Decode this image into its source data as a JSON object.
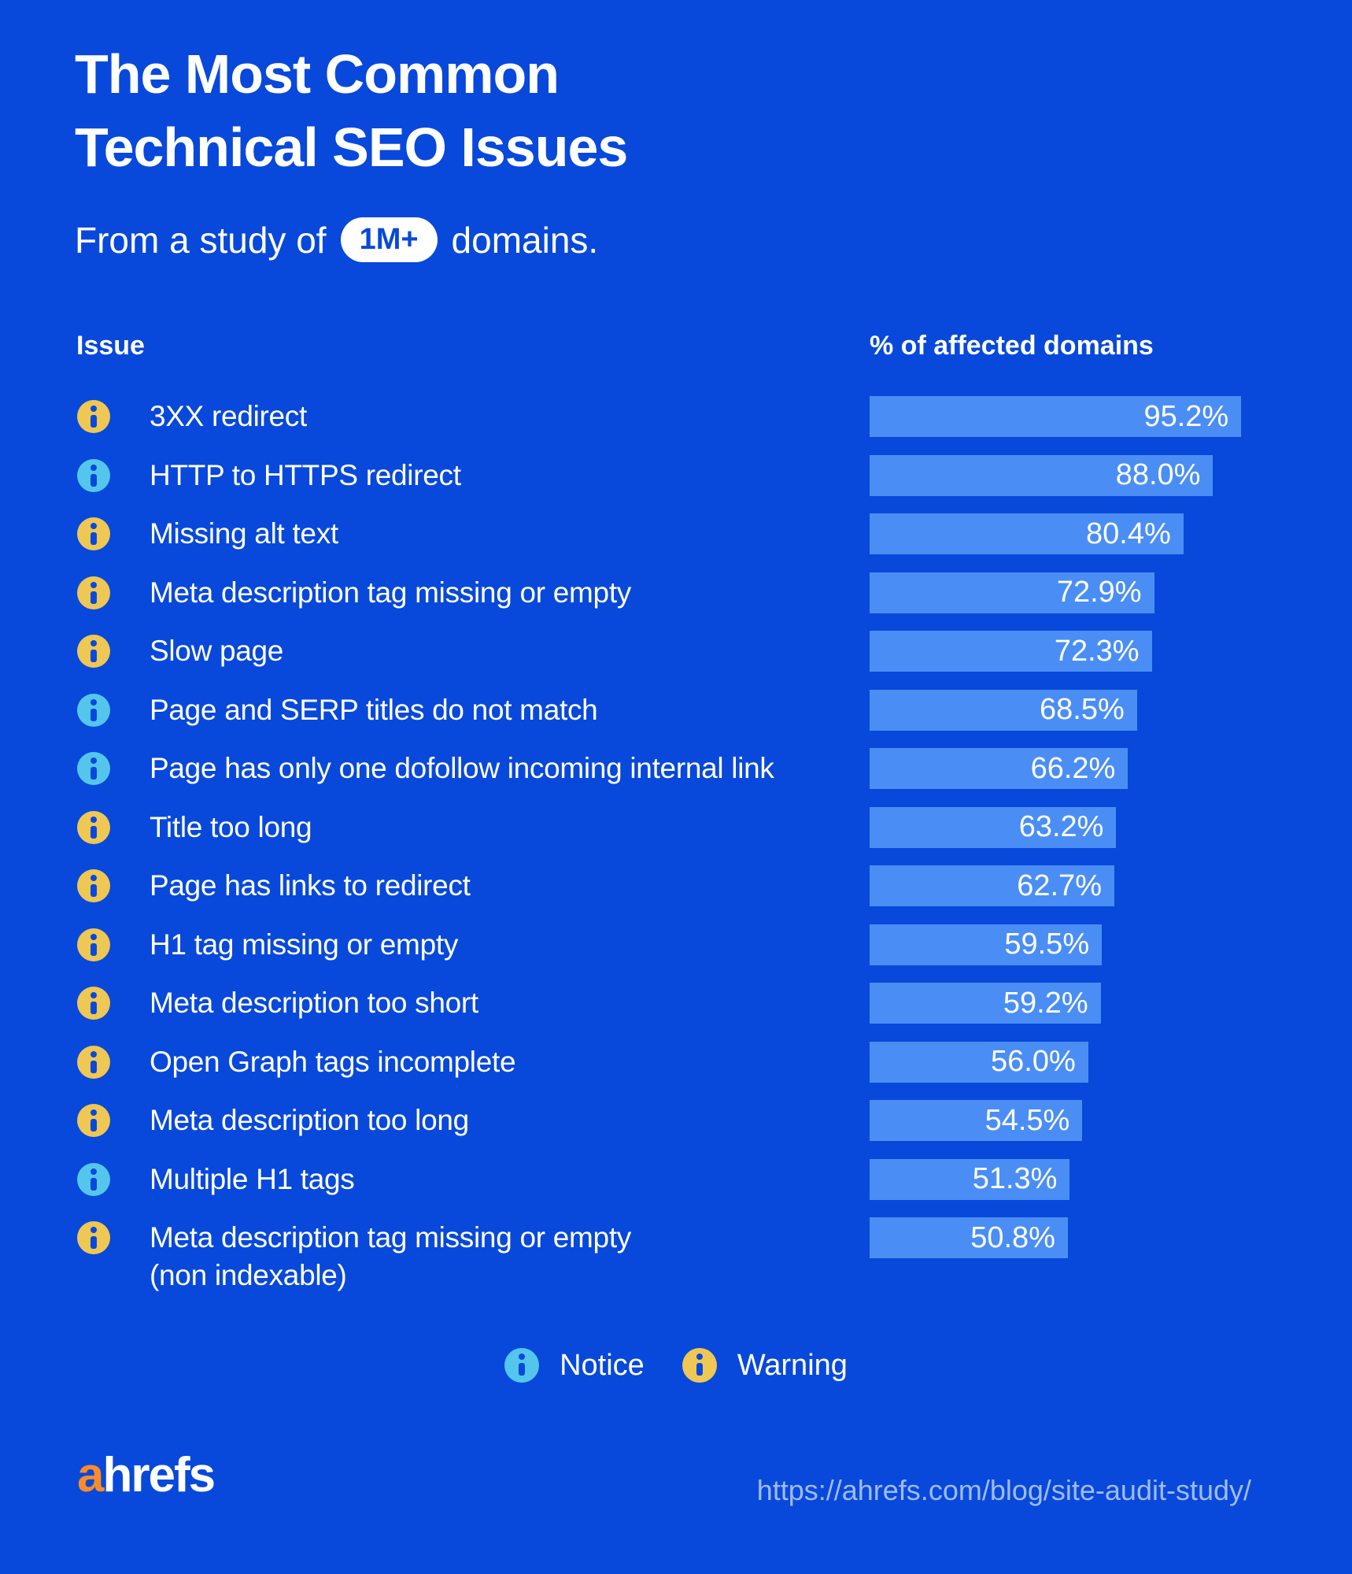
{
  "page": {
    "background_color": "#0849db",
    "title_line1": "The Most Common",
    "title_line2": "Technical SEO Issues",
    "subtitle_prefix": "From a study of",
    "subtitle_badge": "1M+",
    "subtitle_suffix": "domains.",
    "col_issue": "Issue",
    "col_percent": "% of affected domains"
  },
  "chart_data": {
    "type": "bar",
    "orientation": "horizontal",
    "title": "The Most Common Technical SEO Issues",
    "subtitle": "From a study of 1M+ domains.",
    "xlabel": "% of affected domains",
    "xlim": [
      0,
      100
    ],
    "bar_color": "#4a8ef5",
    "value_suffix": "%",
    "categories": [
      "3XX redirect",
      "HTTP to HTTPS redirect",
      "Missing alt text",
      "Meta description tag missing or empty",
      "Slow page",
      "Page and SERP titles do not match",
      "Page has only one dofollow incoming internal link",
      "Title too long",
      "Page has links to redirect",
      "H1 tag missing or empty",
      "Meta description too short",
      "Open Graph tags incomplete",
      "Meta description too long",
      "Multiple H1 tags",
      "Meta description tag missing or empty\n(non indexable)"
    ],
    "values": [
      95.2,
      88.0,
      80.4,
      72.9,
      72.3,
      68.5,
      66.2,
      63.2,
      62.7,
      59.5,
      59.2,
      56.0,
      54.5,
      51.3,
      50.8
    ],
    "severity": [
      "warning",
      "notice",
      "warning",
      "warning",
      "warning",
      "notice",
      "notice",
      "warning",
      "warning",
      "warning",
      "warning",
      "warning",
      "warning",
      "notice",
      "warning"
    ]
  },
  "legend": {
    "notice_label": "Notice",
    "notice_color": "#54c6ec",
    "warning_label": "Warning",
    "warning_color": "#eec754"
  },
  "footer": {
    "logo_a": "a",
    "logo_rest": "hrefs",
    "url": "https://ahrefs.com/blog/site-audit-study/"
  }
}
